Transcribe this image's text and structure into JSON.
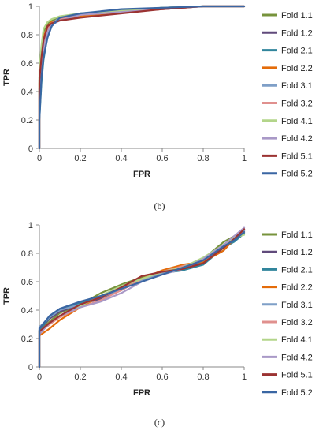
{
  "captions": {
    "b": "(b)",
    "c": "(c)"
  },
  "colors": [
    "#77933c",
    "#604a7b",
    "#31859c",
    "#e46c0a",
    "#7f9fc7",
    "#e0908e",
    "#b3d58a",
    "#a999c7",
    "#9b3332",
    "#3a66a3"
  ],
  "chart_data": [
    {
      "type": "line",
      "title": "",
      "xlabel": "FPR",
      "ylabel": "TPR",
      "xlim": [
        0,
        1
      ],
      "ylim": [
        0,
        1
      ],
      "xticks": [
        "0",
        "0.2",
        "0.4",
        "0.6",
        "0.8",
        "1"
      ],
      "yticks": [
        "0",
        "0.2",
        "0.4",
        "0.6",
        "0.8",
        "1"
      ],
      "grid": false,
      "legend": "right",
      "series": [
        {
          "name": "Fold 1.1",
          "x": [
            0,
            0,
            0.01,
            0.02,
            0.04,
            0.06,
            0.1,
            0.2,
            0.4,
            0.6,
            0.8,
            1
          ],
          "y": [
            0,
            0.5,
            0.68,
            0.82,
            0.88,
            0.9,
            0.92,
            0.94,
            0.97,
            0.99,
            1,
            1
          ]
        },
        {
          "name": "Fold 1.2",
          "x": [
            0,
            0,
            0.01,
            0.02,
            0.04,
            0.06,
            0.1,
            0.2,
            0.4,
            0.6,
            0.8,
            1
          ],
          "y": [
            0,
            0.42,
            0.58,
            0.72,
            0.84,
            0.88,
            0.91,
            0.94,
            0.96,
            0.98,
            1,
            1
          ]
        },
        {
          "name": "Fold 2.1",
          "x": [
            0,
            0,
            0.01,
            0.02,
            0.04,
            0.06,
            0.1,
            0.2,
            0.4,
            0.6,
            0.8,
            1
          ],
          "y": [
            0,
            0.2,
            0.46,
            0.62,
            0.8,
            0.88,
            0.92,
            0.95,
            0.97,
            0.99,
            1,
            1
          ]
        },
        {
          "name": "Fold 2.2",
          "x": [
            0,
            0,
            0.01,
            0.02,
            0.04,
            0.06,
            0.1,
            0.2,
            0.4,
            0.6,
            0.8,
            1
          ],
          "y": [
            0,
            0.46,
            0.62,
            0.78,
            0.86,
            0.89,
            0.91,
            0.93,
            0.96,
            0.98,
            1,
            1
          ]
        },
        {
          "name": "Fold 3.1",
          "x": [
            0,
            0,
            0.01,
            0.02,
            0.04,
            0.06,
            0.1,
            0.2,
            0.4,
            0.6,
            0.8,
            1
          ],
          "y": [
            0,
            0.3,
            0.52,
            0.68,
            0.82,
            0.88,
            0.92,
            0.95,
            0.97,
            0.99,
            1,
            1
          ]
        },
        {
          "name": "Fold 3.2",
          "x": [
            0,
            0,
            0.01,
            0.02,
            0.04,
            0.06,
            0.1,
            0.2,
            0.4,
            0.6,
            0.8,
            1
          ],
          "y": [
            0,
            0.4,
            0.6,
            0.74,
            0.84,
            0.88,
            0.91,
            0.94,
            0.96,
            0.98,
            1,
            1
          ]
        },
        {
          "name": "Fold 4.1",
          "x": [
            0,
            0,
            0.01,
            0.02,
            0.04,
            0.06,
            0.1,
            0.2,
            0.4,
            0.6,
            0.8,
            1
          ],
          "y": [
            0,
            0.55,
            0.72,
            0.84,
            0.89,
            0.91,
            0.93,
            0.95,
            0.97,
            0.99,
            1,
            1
          ]
        },
        {
          "name": "Fold 4.2",
          "x": [
            0,
            0,
            0.01,
            0.02,
            0.04,
            0.06,
            0.1,
            0.2,
            0.4,
            0.6,
            0.8,
            1
          ],
          "y": [
            0,
            0.36,
            0.56,
            0.7,
            0.82,
            0.87,
            0.9,
            0.94,
            0.96,
            0.98,
            1,
            1
          ]
        },
        {
          "name": "Fold 5.1",
          "x": [
            0,
            0,
            0.01,
            0.02,
            0.04,
            0.06,
            0.1,
            0.2,
            0.4,
            0.6,
            0.8,
            1
          ],
          "y": [
            0,
            0.48,
            0.64,
            0.76,
            0.86,
            0.88,
            0.9,
            0.92,
            0.95,
            0.98,
            1,
            1
          ]
        },
        {
          "name": "Fold 5.2",
          "x": [
            0,
            0,
            0.01,
            0.02,
            0.04,
            0.06,
            0.1,
            0.2,
            0.4,
            0.6,
            0.8,
            1
          ],
          "y": [
            0,
            0.2,
            0.5,
            0.64,
            0.78,
            0.86,
            0.92,
            0.95,
            0.98,
            0.99,
            1,
            1
          ]
        }
      ]
    },
    {
      "type": "line",
      "title": "",
      "xlabel": "FPR",
      "ylabel": "TPR",
      "xlim": [
        0,
        1
      ],
      "ylim": [
        0,
        1
      ],
      "xticks": [
        "0",
        "0.2",
        "0.4",
        "0.6",
        "0.8",
        "1"
      ],
      "yticks": [
        "0",
        "0.2",
        "0.4",
        "0.6",
        "0.8",
        "1"
      ],
      "grid": false,
      "legend": "right",
      "series": [
        {
          "name": "Fold 1.1",
          "x": [
            0,
            0,
            0.05,
            0.1,
            0.2,
            0.3,
            0.4,
            0.5,
            0.6,
            0.7,
            0.8,
            0.9,
            0.95,
            1
          ],
          "y": [
            0,
            0.25,
            0.32,
            0.38,
            0.44,
            0.52,
            0.58,
            0.63,
            0.67,
            0.7,
            0.76,
            0.88,
            0.92,
            0.96
          ]
        },
        {
          "name": "Fold 1.2",
          "x": [
            0,
            0,
            0.05,
            0.1,
            0.2,
            0.3,
            0.4,
            0.5,
            0.6,
            0.7,
            0.8,
            0.9,
            0.95,
            1
          ],
          "y": [
            0,
            0.26,
            0.34,
            0.39,
            0.44,
            0.48,
            0.54,
            0.62,
            0.66,
            0.69,
            0.74,
            0.82,
            0.9,
            0.97
          ]
        },
        {
          "name": "Fold 2.1",
          "x": [
            0,
            0,
            0.05,
            0.1,
            0.2,
            0.3,
            0.4,
            0.5,
            0.6,
            0.7,
            0.8,
            0.9,
            0.95,
            1
          ],
          "y": [
            0,
            0.26,
            0.35,
            0.4,
            0.45,
            0.5,
            0.56,
            0.6,
            0.66,
            0.68,
            0.72,
            0.84,
            0.88,
            0.94
          ]
        },
        {
          "name": "Fold 2.2",
          "x": [
            0,
            0,
            0.05,
            0.1,
            0.2,
            0.3,
            0.4,
            0.5,
            0.6,
            0.7,
            0.8,
            0.9,
            0.95,
            1
          ],
          "y": [
            0,
            0.22,
            0.27,
            0.33,
            0.42,
            0.5,
            0.56,
            0.62,
            0.68,
            0.72,
            0.74,
            0.82,
            0.9,
            0.95
          ]
        },
        {
          "name": "Fold 3.1",
          "x": [
            0,
            0,
            0.05,
            0.1,
            0.2,
            0.3,
            0.4,
            0.5,
            0.6,
            0.7,
            0.8,
            0.9,
            0.95,
            1
          ],
          "y": [
            0,
            0.28,
            0.35,
            0.4,
            0.44,
            0.49,
            0.55,
            0.61,
            0.66,
            0.7,
            0.75,
            0.86,
            0.9,
            0.96
          ]
        },
        {
          "name": "Fold 3.2",
          "x": [
            0,
            0,
            0.05,
            0.1,
            0.2,
            0.3,
            0.4,
            0.5,
            0.6,
            0.7,
            0.8,
            0.9,
            0.95,
            1
          ],
          "y": [
            0,
            0.24,
            0.3,
            0.35,
            0.42,
            0.47,
            0.54,
            0.62,
            0.67,
            0.71,
            0.75,
            0.84,
            0.9,
            0.95
          ]
        },
        {
          "name": "Fold 4.1",
          "x": [
            0,
            0,
            0.05,
            0.1,
            0.2,
            0.3,
            0.4,
            0.5,
            0.6,
            0.7,
            0.8,
            0.9,
            0.95,
            1
          ],
          "y": [
            0,
            0.25,
            0.31,
            0.36,
            0.43,
            0.5,
            0.57,
            0.62,
            0.67,
            0.7,
            0.77,
            0.86,
            0.91,
            0.93
          ]
        },
        {
          "name": "Fold 4.2",
          "x": [
            0,
            0,
            0.05,
            0.1,
            0.2,
            0.3,
            0.4,
            0.5,
            0.6,
            0.7,
            0.8,
            0.9,
            0.95,
            1
          ],
          "y": [
            0,
            0.23,
            0.31,
            0.36,
            0.42,
            0.46,
            0.52,
            0.6,
            0.65,
            0.69,
            0.76,
            0.86,
            0.92,
            0.98
          ]
        },
        {
          "name": "Fold 5.1",
          "x": [
            0,
            0,
            0.05,
            0.1,
            0.2,
            0.3,
            0.4,
            0.5,
            0.6,
            0.7,
            0.8,
            0.9,
            0.95,
            1
          ],
          "y": [
            0,
            0.25,
            0.31,
            0.36,
            0.44,
            0.49,
            0.56,
            0.64,
            0.67,
            0.69,
            0.73,
            0.84,
            0.9,
            0.97
          ]
        },
        {
          "name": "Fold 5.2",
          "x": [
            0,
            0,
            0.05,
            0.1,
            0.2,
            0.3,
            0.4,
            0.5,
            0.6,
            0.7,
            0.8,
            0.9,
            0.95,
            1
          ],
          "y": [
            0,
            0.27,
            0.36,
            0.41,
            0.46,
            0.5,
            0.55,
            0.6,
            0.65,
            0.7,
            0.75,
            0.85,
            0.89,
            0.95
          ]
        }
      ]
    }
  ]
}
